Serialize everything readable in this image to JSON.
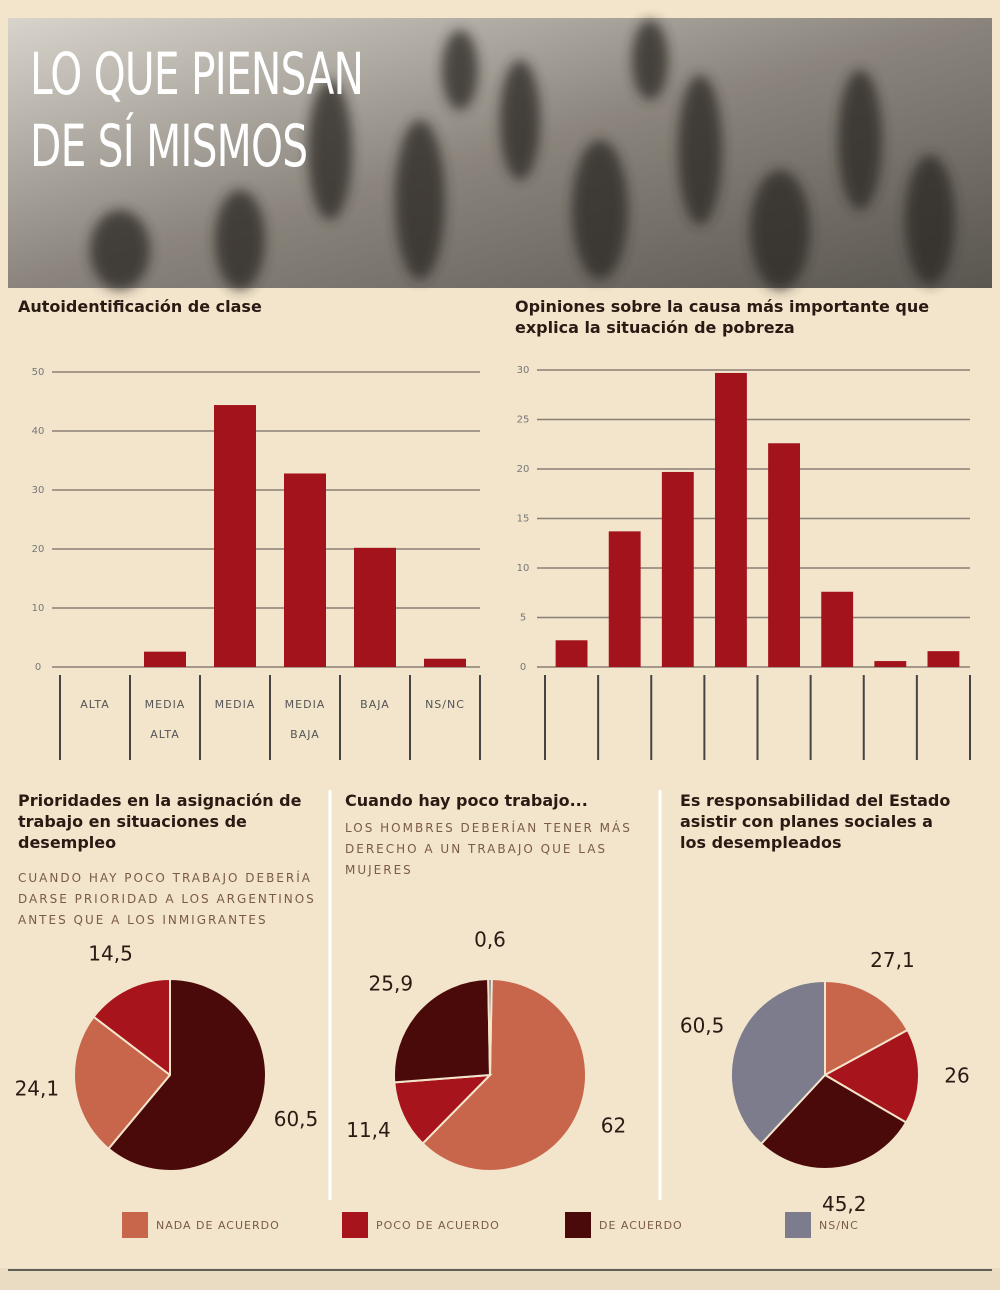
{
  "title": [
    "LO QUE PIENSAN",
    "DE SÍ MISMOS"
  ],
  "legend": {
    "names": [
      "NADA DE ACUERDO",
      "POCO DE ACUERDO",
      "DE ACUERDO",
      "NS/NC"
    ],
    "colors": [
      "#c8664c",
      "#a8141c",
      "#4a0a0a",
      "#7c7c8c"
    ]
  },
  "chart_data": [
    {
      "type": "bar",
      "title": "Autoidentificación de clase",
      "categories": [
        "ALTA",
        "MEDIA ALTA",
        "MEDIA",
        "MEDIA BAJA",
        "BAJA",
        "NS/NC"
      ],
      "values": [
        0,
        2.6,
        44.4,
        32.8,
        20.2,
        1.4
      ],
      "color": "#a3131c",
      "ylim": [
        0,
        50
      ],
      "yticks": [
        0,
        10,
        20,
        30,
        40,
        50
      ],
      "grid": true
    },
    {
      "type": "bar",
      "title": "Opiniones sobre la causa más importante que explica la situación de pobreza",
      "categories": [
        null,
        null,
        null,
        null,
        null,
        null,
        null,
        null
      ],
      "values": [
        2.7,
        13.7,
        19.7,
        29.7,
        22.6,
        7.6,
        0.6,
        1.6
      ],
      "color": "#a3131c",
      "ylim": [
        0,
        30
      ],
      "yticks": [
        0,
        5,
        10,
        15,
        20,
        25,
        30
      ],
      "grid": true
    },
    {
      "type": "pie",
      "title": "Prioridades en la asignación de trabajo en situaciones de desempleo",
      "subtitle": "CUANDO HAY POCO TRABAJO DEBERÍA DARSE PRIORIDAD A LOS ARGENTINOS ANTES QUE A LOS INMIGRANTES",
      "values": [
        24.1,
        14.5,
        60.5,
        null
      ],
      "value_labels": [
        "24,1",
        "14,5",
        "60,5",
        null
      ]
    },
    {
      "type": "pie",
      "title": "Cuando hay poco trabajo...",
      "subtitle": "LOS HOMBRES DEBERÍAN TENER MÁS DERECHO A UN TRABAJO QUE LAS MUJERES",
      "values": [
        62,
        11.4,
        25.9,
        0.6
      ],
      "value_labels": [
        "62",
        "11,4",
        "25,9",
        "0,6"
      ]
    },
    {
      "type": "pie",
      "title": "Es responsabilidad del Estado asistir con planes sociales a los desempleados",
      "values": [
        27.1,
        26,
        45.2,
        60.5
      ],
      "value_labels": [
        "27,1",
        "26",
        "45,2",
        "60,5"
      ]
    }
  ]
}
